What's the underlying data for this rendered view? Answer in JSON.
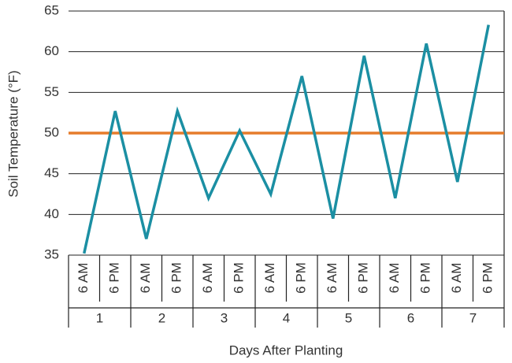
{
  "chart_data": {
    "type": "line",
    "ylabel": "Soil Temperature (°F)",
    "xlabel": "Days After Planting",
    "categories": [
      "6 AM",
      "6 PM",
      "6 AM",
      "6 PM",
      "6 AM",
      "6 PM",
      "6 AM",
      "6 PM",
      "6 AM",
      "6 PM",
      "6 AM",
      "6 PM",
      "6 AM",
      "6 PM"
    ],
    "groups": [
      "1",
      "2",
      "3",
      "4",
      "5",
      "6",
      "7"
    ],
    "series": [
      {
        "color": "#1b8fa3",
        "values": [
          35.2,
          52.7,
          37,
          52.7,
          42,
          50.3,
          42.5,
          57,
          39.5,
          59.5,
          42,
          61,
          44,
          63.3
        ]
      }
    ],
    "reference_line": {
      "value": 50,
      "color": "#e57c2b"
    },
    "ylim": [
      35,
      65
    ],
    "yticks": [
      35,
      40,
      45,
      50,
      55,
      60,
      65
    ],
    "grid": true
  }
}
